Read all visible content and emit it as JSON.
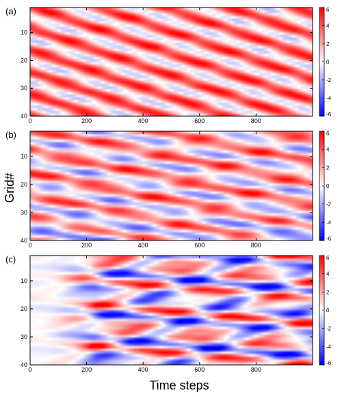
{
  "figure": {
    "ylabel": "Grid#",
    "xlabel": "Time steps"
  },
  "chart_data": [
    {
      "type": "heatmap",
      "panel_label": "(a)",
      "xlim": [
        0,
        1000
      ],
      "ylim": [
        40,
        1
      ],
      "x_ticks": [
        0,
        200,
        400,
        600,
        800
      ],
      "y_ticks": [
        10,
        20,
        30,
        40
      ],
      "colorbar": {
        "min": -6,
        "max": 6,
        "ticks": [
          6,
          4,
          2,
          0,
          -2,
          -4,
          -6
        ]
      },
      "pattern": {
        "bias": 2.2,
        "diag_drift": 0.035,
        "noise": 1.2,
        "leftfade": false,
        "late_shift": 0
      }
    },
    {
      "type": "heatmap",
      "panel_label": "(b)",
      "xlim": [
        0,
        1000
      ],
      "ylim": [
        40,
        1
      ],
      "x_ticks": [
        0,
        200,
        400,
        600,
        800
      ],
      "y_ticks": [
        10,
        20,
        30,
        40
      ],
      "colorbar": {
        "min": -6,
        "max": 6,
        "ticks": [
          6,
          4,
          2,
          0,
          -2,
          -4,
          -6
        ]
      },
      "pattern": {
        "bias": 1.3,
        "diag_drift": 0.02,
        "noise": 2.3,
        "leftfade": false,
        "late_shift": -1.6
      }
    },
    {
      "type": "heatmap",
      "panel_label": "(c)",
      "xlim": [
        0,
        1000
      ],
      "ylim": [
        40,
        1
      ],
      "x_ticks": [
        0,
        200,
        400,
        600,
        800
      ],
      "y_ticks": [
        10,
        20,
        30,
        40
      ],
      "colorbar": {
        "min": -6,
        "max": 6,
        "ticks": [
          6,
          4,
          2,
          0,
          -2,
          -4,
          -6
        ]
      },
      "pattern": {
        "bias": 0.0,
        "diag_drift": 0.01,
        "noise": 5.2,
        "leftfade": true,
        "late_shift": 0
      }
    }
  ],
  "colors": {
    "positive": "#ff0000",
    "zero": "#ffffff",
    "negative": "#0000ff"
  }
}
